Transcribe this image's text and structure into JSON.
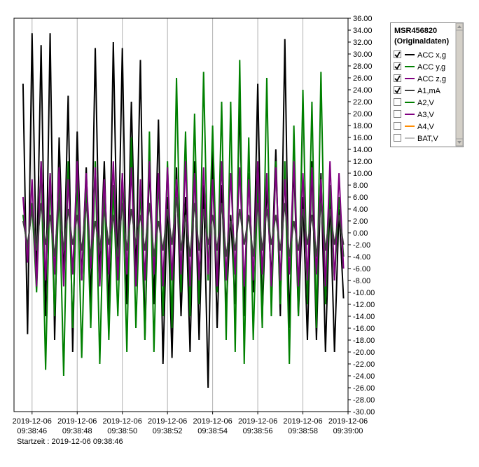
{
  "chart_data": {
    "type": "line",
    "xlim": [
      -0.8,
      14
    ],
    "ylim": [
      -30,
      36
    ],
    "xticks": [
      {
        "value": 0,
        "label": [
          "2019-12-06",
          "09:38:46"
        ]
      },
      {
        "value": 2,
        "label": [
          "2019-12-06",
          "09:38:48"
        ]
      },
      {
        "value": 4,
        "label": [
          "2019-12-06",
          "09:38:50"
        ]
      },
      {
        "value": 6,
        "label": [
          "2019-12-06",
          "09:38:52"
        ]
      },
      {
        "value": 8,
        "label": [
          "2019-12-06",
          "09:38:54"
        ]
      },
      {
        "value": 10,
        "label": [
          "2019-12-06",
          "09:38:56"
        ]
      },
      {
        "value": 12,
        "label": [
          "2019-12-06",
          "09:38:58"
        ]
      },
      {
        "value": 14,
        "label": [
          "2019-12-06",
          "09:39:00"
        ]
      }
    ],
    "yticks": [
      {
        "value": 36,
        "label": "36.00"
      },
      {
        "value": 34,
        "label": "34.00"
      },
      {
        "value": 32,
        "label": "32.00"
      },
      {
        "value": 30,
        "label": "30.00"
      },
      {
        "value": 28,
        "label": "28.00"
      },
      {
        "value": 26,
        "label": "26.00"
      },
      {
        "value": 24,
        "label": "24.00"
      },
      {
        "value": 22,
        "label": "22.00"
      },
      {
        "value": 20,
        "label": "20.00"
      },
      {
        "value": 18,
        "label": "18.00"
      },
      {
        "value": 16,
        "label": "16.00"
      },
      {
        "value": 14,
        "label": "14.00"
      },
      {
        "value": 12,
        "label": "12.00"
      },
      {
        "value": 10,
        "label": "10.00"
      },
      {
        "value": 8,
        "label": "8.00"
      },
      {
        "value": 6,
        "label": "6.00"
      },
      {
        "value": 4,
        "label": "4.00"
      },
      {
        "value": 2,
        "label": "2.00"
      },
      {
        "value": 0,
        "label": "0.00"
      },
      {
        "value": -2,
        "label": "-2.00"
      },
      {
        "value": -4,
        "label": "-4.00"
      },
      {
        "value": -6,
        "label": "-6.00"
      },
      {
        "value": -8,
        "label": "-8.00"
      },
      {
        "value": -10,
        "label": "-10.00"
      },
      {
        "value": -12,
        "label": "-12.00"
      },
      {
        "value": -14,
        "label": "-14.00"
      },
      {
        "value": -16,
        "label": "-16.00"
      },
      {
        "value": -18,
        "label": "-18.00"
      },
      {
        "value": -20,
        "label": "-20.00"
      },
      {
        "value": -22,
        "label": "-22.00"
      },
      {
        "value": -24,
        "label": "-24.00"
      },
      {
        "value": -26,
        "label": "-26.00"
      },
      {
        "value": -28,
        "label": "-28.00"
      },
      {
        "value": -30,
        "label": "-30.00"
      }
    ],
    "grid": "x",
    "start_label": "Startzeit : 2019-12-06 09:38:46",
    "legend_title": [
      "MSR456820",
      "(Originaldaten)"
    ],
    "x": [
      -0.4,
      -0.2,
      0,
      0.2,
      0.4,
      0.6,
      0.8,
      1,
      1.2,
      1.4,
      1.6,
      1.8,
      2,
      2.2,
      2.4,
      2.6,
      2.8,
      3,
      3.2,
      3.4,
      3.6,
      3.8,
      4,
      4.2,
      4.4,
      4.6,
      4.8,
      5,
      5.2,
      5.4,
      5.6,
      5.8,
      6,
      6.2,
      6.4,
      6.6,
      6.8,
      7,
      7.2,
      7.4,
      7.6,
      7.8,
      8,
      8.2,
      8.4,
      8.6,
      8.8,
      9,
      9.2,
      9.4,
      9.6,
      9.8,
      10,
      10.2,
      10.4,
      10.6,
      10.8,
      11,
      11.2,
      11.4,
      11.6,
      11.8,
      12,
      12.2,
      12.4,
      12.6,
      12.8,
      13,
      13.2,
      13.4,
      13.6,
      13.8
    ],
    "series": [
      {
        "name": "ACC x,g",
        "color": "#000000",
        "checked": true,
        "values": [
          25,
          -17,
          33.5,
          -8,
          31.5,
          -14,
          33.5,
          -18,
          16,
          -8,
          23,
          -20,
          17,
          -8,
          11,
          -12,
          31,
          -8,
          12,
          -14,
          32,
          -8,
          31,
          -12,
          22,
          -8,
          29,
          -18,
          12,
          -12,
          19,
          -22,
          6,
          -21,
          11,
          -14,
          6,
          -20,
          12,
          -18,
          8,
          -26,
          14,
          -16,
          8,
          -13,
          3,
          -12,
          22,
          -14,
          10,
          -10,
          25,
          -14,
          8,
          -8,
          14,
          -14,
          32.5,
          -16,
          12,
          -14,
          6,
          -18,
          12,
          -18,
          10,
          -20,
          6,
          -20,
          4,
          -11
        ]
      },
      {
        "name": "ACC y,g",
        "color": "#008000",
        "checked": true,
        "values": [
          3,
          -3,
          5,
          -10,
          12,
          -23,
          10,
          -14,
          8,
          -24,
          12,
          -16,
          10,
          -21,
          9,
          -16,
          12,
          -22,
          8,
          -18,
          8,
          -14,
          10,
          -20,
          16,
          -16,
          8,
          -18,
          17,
          -20,
          10,
          -14,
          12,
          -16,
          26,
          -10,
          17,
          -14,
          20,
          -12,
          27,
          -8,
          18,
          -10,
          22,
          -18,
          22,
          -20,
          29,
          -22,
          16,
          -18,
          9,
          -16,
          26,
          -14,
          12,
          -12,
          12,
          -22,
          18,
          -14,
          24,
          -12,
          22,
          -16,
          27,
          -12,
          8,
          -8,
          6,
          -4
        ]
      },
      {
        "name": "ACC z,g",
        "color": "#800080",
        "checked": true,
        "values": [
          6,
          -5,
          9,
          -9,
          12,
          -8,
          10,
          -7,
          11,
          -9,
          9,
          -7,
          12,
          -8,
          10,
          -6,
          11,
          -9,
          9,
          -7,
          12,
          -8,
          10,
          -7,
          11,
          -9,
          9,
          -8,
          12,
          -7,
          10,
          -9,
          11,
          -8,
          9,
          -7,
          12,
          -9,
          10,
          -8,
          11,
          -7,
          9,
          -9,
          12,
          -8,
          10,
          -7,
          11,
          -9,
          9,
          -8,
          12,
          -7,
          10,
          -9,
          11,
          -8,
          9,
          -7,
          12,
          -9,
          10,
          -8,
          11,
          -7,
          9,
          -9,
          12,
          -8,
          10,
          -6
        ]
      },
      {
        "name": "A1,mA",
        "color": "#404040",
        "checked": true,
        "values": [
          2,
          -2,
          4,
          -3,
          5,
          -2,
          3,
          -4,
          6,
          -3,
          4,
          -2,
          3,
          -3,
          5,
          -4,
          2,
          -3,
          4,
          -2,
          3,
          -4,
          5,
          -3,
          4,
          -2,
          3,
          -3,
          5,
          -4,
          2,
          -3,
          4,
          -2,
          6,
          -3,
          3,
          -4,
          5,
          -3,
          4,
          -2,
          3,
          -3,
          5,
          -4,
          2,
          -3,
          4,
          -2,
          3,
          -4,
          5,
          -3,
          4,
          -2,
          3,
          -3,
          5,
          -4,
          2,
          -3,
          4,
          -2,
          3,
          -4,
          5,
          -3,
          4,
          -2,
          3,
          -2
        ]
      },
      {
        "name": "A2,V",
        "color": "#008000",
        "checked": false
      },
      {
        "name": "A3,V",
        "color": "#800080",
        "checked": false
      },
      {
        "name": "A4,V",
        "color": "#ff8c00",
        "checked": false
      },
      {
        "name": "BAT,V",
        "color": "#c0c0c0",
        "checked": false
      }
    ]
  }
}
